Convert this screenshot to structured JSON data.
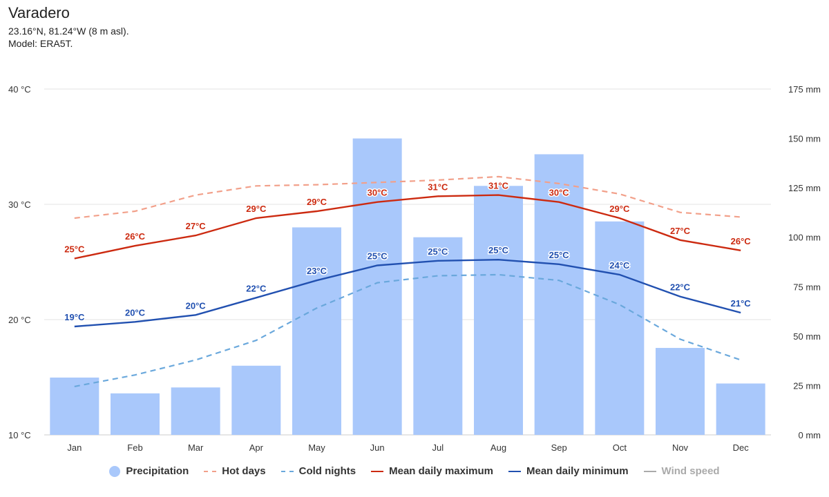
{
  "header": {
    "title": "Varadero",
    "coords": "23.16°N, 81.24°W (8 m asl).",
    "model": "Model: ERA5T."
  },
  "colors": {
    "precip": "#a9c8fb",
    "hot": "#f2a08a",
    "cold": "#6aa8dc",
    "max": "#cc2a10",
    "min": "#2150b0",
    "wind": "#aaaaaa",
    "grid": "#e3e3e3"
  },
  "legend": [
    {
      "label": "Precipitation",
      "kind": "dot",
      "color": "#a9c8fb"
    },
    {
      "label": "Hot days",
      "kind": "dash",
      "color": "#f2a08a"
    },
    {
      "label": "Cold nights",
      "kind": "dash",
      "color": "#6aa8dc"
    },
    {
      "label": "Mean daily maximum",
      "kind": "line",
      "color": "#cc2a10"
    },
    {
      "label": "Mean daily minimum",
      "kind": "line",
      "color": "#2150b0"
    },
    {
      "label": "Wind speed",
      "kind": "line",
      "color": "#aaaaaa",
      "muted": true
    }
  ],
  "chart_data": {
    "type": "bar",
    "categories": [
      "Jan",
      "Feb",
      "Mar",
      "Apr",
      "May",
      "Jun",
      "Jul",
      "Aug",
      "Sep",
      "Oct",
      "Nov",
      "Dec"
    ],
    "y_left": {
      "min": 10,
      "max": 40,
      "ticks": [
        10,
        20,
        30,
        40
      ],
      "tick_labels": [
        "10 °C",
        "20 °C",
        "30 °C",
        "40 °C"
      ]
    },
    "y_right": {
      "min": 0,
      "max": 175,
      "ticks": [
        0,
        25,
        50,
        75,
        100,
        125,
        150,
        175
      ],
      "tick_labels": [
        "0 mm",
        "25 mm",
        "50 mm",
        "75 mm",
        "100 mm",
        "125 mm",
        "150 mm",
        "175 mm"
      ]
    },
    "grid": true,
    "legend_position": "bottom",
    "precipitation": {
      "name": "Precipitation",
      "unit": "mm",
      "values": [
        29,
        21,
        24,
        35,
        105,
        150,
        100,
        126,
        142,
        108,
        44,
        26
      ]
    },
    "hot_days": {
      "name": "Hot days",
      "values": [
        28.8,
        29.4,
        30.8,
        31.6,
        31.7,
        31.9,
        32.1,
        32.4,
        31.8,
        30.9,
        29.3,
        28.9
      ]
    },
    "cold_nights": {
      "name": "Cold nights",
      "values": [
        14.2,
        15.2,
        16.5,
        18.2,
        21.0,
        23.2,
        23.8,
        23.9,
        23.4,
        21.3,
        18.3,
        16.5
      ]
    },
    "mean_max": {
      "name": "Mean daily maximum",
      "values": [
        25.3,
        26.4,
        27.3,
        28.8,
        29.4,
        30.2,
        30.7,
        30.8,
        30.2,
        28.8,
        26.9,
        26.0
      ],
      "labels": [
        "25°C",
        "26°C",
        "27°C",
        "29°C",
        "29°C",
        "30°C",
        "31°C",
        "31°C",
        "30°C",
        "29°C",
        "27°C",
        "26°C"
      ]
    },
    "mean_min": {
      "name": "Mean daily minimum",
      "values": [
        19.4,
        19.8,
        20.4,
        21.9,
        23.4,
        24.7,
        25.1,
        25.2,
        24.8,
        23.9,
        22.0,
        20.6
      ],
      "labels": [
        "19°C",
        "20°C",
        "20°C",
        "22°C",
        "23°C",
        "25°C",
        "25°C",
        "25°C",
        "25°C",
        "24°C",
        "22°C",
        "21°C"
      ]
    }
  }
}
